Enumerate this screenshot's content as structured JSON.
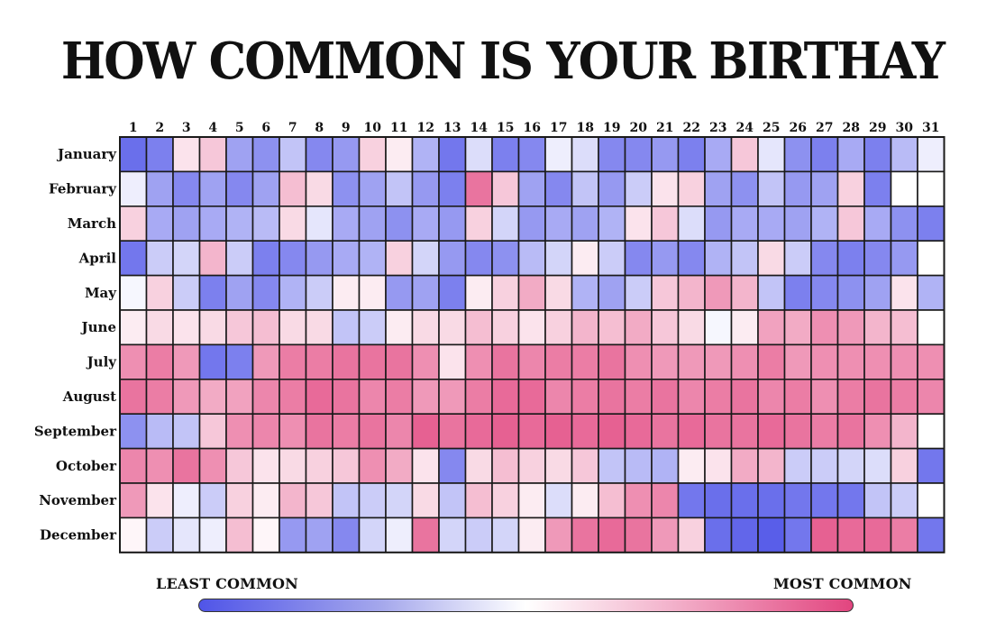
{
  "title": "HOW COMMON IS YOUR BIRTHAY",
  "legend": {
    "least_label": "LEAST COMMON",
    "most_label": "MOST COMMON",
    "colors": {
      "least": "#5055e8",
      "mid": "#ffffff",
      "most": "#e2457f"
    }
  },
  "chart_data": {
    "type": "heatmap",
    "title": "HOW COMMON IS YOUR BIRTHAY",
    "x_categories": [
      "1",
      "2",
      "3",
      "4",
      "5",
      "6",
      "7",
      "8",
      "9",
      "10",
      "11",
      "12",
      "13",
      "14",
      "15",
      "16",
      "17",
      "18",
      "19",
      "20",
      "21",
      "22",
      "23",
      "24",
      "25",
      "26",
      "27",
      "28",
      "29",
      "30",
      "31"
    ],
    "y_categories": [
      "January",
      "February",
      "March",
      "April",
      "May",
      "June",
      "July",
      "August",
      "September",
      "October",
      "November",
      "December"
    ],
    "value_scale": "-1 = least common (blue), 0 = average (white), 1 = most common (pink)",
    "values": [
      [
        -0.85,
        -0.75,
        0.15,
        0.3,
        -0.55,
        -0.65,
        -0.35,
        -0.7,
        -0.6,
        0.25,
        0.1,
        -0.45,
        -0.8,
        -0.2,
        -0.75,
        -0.7,
        -0.1,
        -0.2,
        -0.7,
        -0.7,
        -0.6,
        -0.75,
        -0.5,
        0.3,
        -0.15,
        -0.65,
        -0.75,
        -0.5,
        -0.75,
        -0.4,
        -0.1
      ],
      [
        -0.1,
        -0.55,
        -0.7,
        -0.55,
        -0.7,
        -0.55,
        0.35,
        0.2,
        -0.65,
        -0.55,
        -0.35,
        -0.6,
        -0.75,
        0.75,
        0.3,
        -0.55,
        -0.7,
        -0.35,
        -0.6,
        -0.3,
        0.15,
        0.25,
        -0.55,
        -0.65,
        -0.35,
        -0.6,
        -0.55,
        0.25,
        -0.75,
        null,
        null
      ],
      [
        0.25,
        -0.5,
        -0.55,
        -0.5,
        -0.45,
        -0.4,
        0.2,
        -0.15,
        -0.5,
        -0.55,
        -0.65,
        -0.5,
        -0.6,
        0.25,
        -0.25,
        -0.6,
        -0.5,
        -0.55,
        -0.45,
        0.15,
        0.3,
        -0.2,
        -0.6,
        -0.5,
        -0.5,
        -0.55,
        -0.45,
        0.3,
        -0.5,
        -0.65,
        -0.75
      ],
      [
        -0.8,
        -0.3,
        -0.25,
        0.4,
        -0.3,
        -0.75,
        -0.7,
        -0.6,
        -0.5,
        -0.45,
        0.25,
        -0.25,
        -0.6,
        -0.7,
        -0.65,
        -0.4,
        -0.25,
        0.1,
        -0.3,
        -0.7,
        -0.6,
        -0.7,
        -0.45,
        -0.35,
        0.2,
        -0.3,
        -0.7,
        -0.75,
        -0.7,
        -0.6,
        null
      ],
      [
        -0.05,
        0.25,
        -0.3,
        -0.75,
        -0.55,
        -0.7,
        -0.45,
        -0.3,
        0.1,
        0.1,
        -0.6,
        -0.55,
        -0.75,
        0.1,
        0.25,
        0.45,
        0.2,
        -0.45,
        -0.55,
        -0.3,
        0.3,
        0.4,
        0.55,
        0.4,
        -0.35,
        -0.75,
        -0.7,
        -0.65,
        -0.55,
        0.15,
        -0.45
      ],
      [
        0.1,
        0.2,
        0.15,
        0.2,
        0.3,
        0.35,
        0.2,
        0.2,
        -0.35,
        -0.3,
        0.1,
        0.2,
        0.2,
        0.35,
        0.25,
        0.15,
        0.25,
        0.4,
        0.35,
        0.45,
        0.3,
        0.2,
        -0.05,
        0.1,
        0.5,
        0.45,
        0.6,
        0.55,
        0.4,
        0.35,
        null
      ],
      [
        0.6,
        0.7,
        0.55,
        -0.8,
        -0.75,
        0.55,
        0.7,
        0.7,
        0.75,
        0.75,
        0.75,
        0.6,
        0.15,
        0.6,
        0.75,
        0.65,
        0.7,
        0.7,
        0.75,
        0.6,
        0.55,
        0.55,
        0.55,
        0.6,
        0.7,
        0.55,
        0.6,
        0.6,
        0.6,
        0.6,
        0.6
      ],
      [
        0.75,
        0.7,
        0.55,
        0.45,
        0.5,
        0.65,
        0.7,
        0.8,
        0.75,
        0.65,
        0.7,
        0.55,
        0.55,
        0.7,
        0.8,
        0.8,
        0.65,
        0.7,
        0.75,
        0.7,
        0.75,
        0.65,
        0.7,
        0.75,
        0.65,
        0.7,
        0.6,
        0.7,
        0.75,
        0.7,
        0.65
      ],
      [
        -0.65,
        -0.4,
        -0.35,
        0.3,
        0.6,
        0.65,
        0.6,
        0.75,
        0.7,
        0.75,
        0.65,
        0.85,
        0.75,
        0.8,
        0.85,
        0.8,
        0.85,
        0.8,
        0.85,
        0.8,
        0.75,
        0.8,
        0.75,
        0.75,
        0.8,
        0.75,
        0.7,
        0.75,
        0.6,
        0.4,
        null
      ],
      [
        0.65,
        0.6,
        0.75,
        0.6,
        0.3,
        0.15,
        0.2,
        0.25,
        0.3,
        0.6,
        0.45,
        0.15,
        -0.7,
        0.2,
        0.35,
        0.25,
        0.2,
        0.3,
        -0.35,
        -0.4,
        -0.45,
        0.1,
        0.15,
        0.45,
        0.4,
        -0.3,
        -0.3,
        -0.25,
        -0.2,
        0.25,
        -0.8
      ],
      [
        0.55,
        0.15,
        -0.1,
        -0.3,
        0.25,
        0.1,
        0.4,
        0.3,
        -0.35,
        -0.3,
        -0.25,
        0.2,
        -0.35,
        0.35,
        0.25,
        0.1,
        -0.2,
        0.1,
        0.35,
        0.6,
        0.65,
        -0.8,
        -0.85,
        -0.85,
        -0.85,
        -0.8,
        -0.8,
        -0.8,
        -0.35,
        -0.3,
        null
      ],
      [
        0.05,
        -0.3,
        -0.15,
        -0.1,
        0.35,
        0.05,
        -0.6,
        -0.55,
        -0.7,
        -0.25,
        -0.1,
        0.75,
        -0.25,
        -0.3,
        -0.25,
        0.1,
        0.55,
        0.75,
        0.8,
        0.75,
        0.55,
        0.25,
        -0.85,
        -0.9,
        -0.95,
        -0.8,
        0.85,
        0.8,
        0.8,
        0.7,
        -0.8
      ]
    ],
    "colorscale": [
      "#5055e8",
      "#ffffff",
      "#e2457f"
    ],
    "legend": "bottom"
  }
}
